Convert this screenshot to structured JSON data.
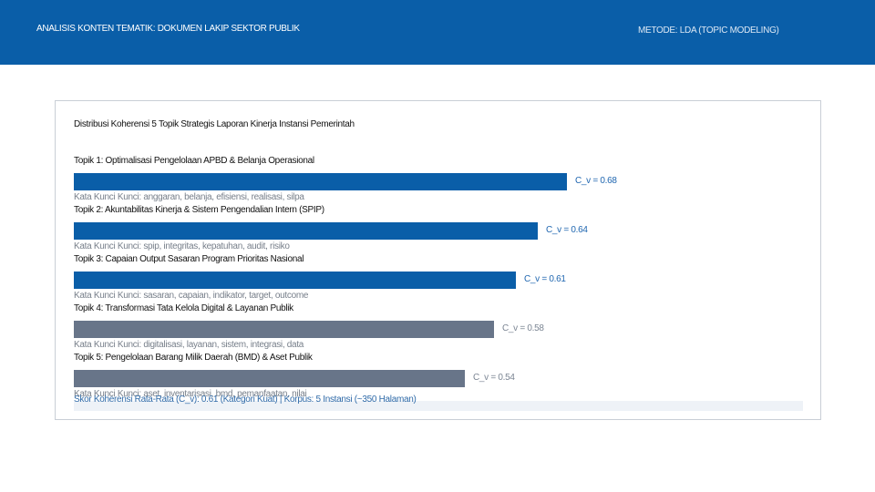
{
  "header": {
    "title": "ANALISIS KONTEN TEMATIK: DOKUMEN LAKIP SEKTOR PUBLIK",
    "method": "METODE: LDA (TOPIC MODELING)"
  },
  "colors": {
    "header_bg": "#0a5ea8",
    "bar_primary": "#0a5ea8",
    "bar_secondary": "#687589",
    "value_primary": "#1f66b0",
    "value_secondary": "#7b8593"
  },
  "chart_data": {
    "type": "bar",
    "orientation": "horizontal",
    "title": "Distribusi Koherensi 5 Topik Strategis Laporan Kinerja Instansi Pemerintah",
    "xlim": [
      0,
      1
    ],
    "grid": false,
    "categories": [
      "Topik 1: Optimalisasi Pengelolaan APBD & Belanja Operasional",
      "Topik 2: Akuntabilitas Kinerja & Sistem Pengendalian Intern (SPIP)",
      "Topik 3: Capaian Output Sasaran Program Prioritas Nasional",
      "Topik 4: Transformasi Tata Kelola Digital & Layanan Publik",
      "Topik 5: Pengelolaan Barang Milik Daerah (BMD) & Aset Publik"
    ],
    "values": [
      0.68,
      0.64,
      0.61,
      0.58,
      0.54
    ],
    "value_labels": [
      "C_v = 0.68",
      "C_v = 0.64",
      "C_v = 0.61",
      "C_v = 0.58",
      "C_v = 0.54"
    ],
    "keywords": [
      "Kata Kunci Kunci: anggaran, belanja, efisiensi, realisasi, silpa",
      "Kata Kunci Kunci: spip, integritas, kepatuhan, audit, risiko",
      "Kata Kunci Kunci: sasaran, capaian, indikator, target, outcome",
      "Kata Kunci Kunci: digitalisasi, layanan, sistem, integrasi, data",
      "Kata Kunci Kunci: aset, inventarisasi, bmd, pemanfaatan, nilai"
    ],
    "highlight": [
      true,
      true,
      true,
      false,
      false
    ],
    "footer": "Skor Koherensi Rata-Rata (C_v): 0.61 (Kategori Kuat) | Korpus: 5 Instansi (~350 Halaman)"
  }
}
